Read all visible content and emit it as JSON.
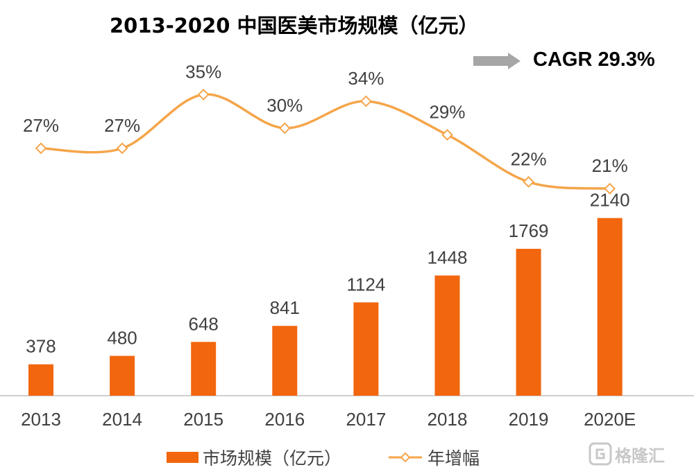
{
  "title": "2013-2020 中国医美市场规模（亿元）",
  "cagr_label": "CAGR 29.3%",
  "watermark": "格隆汇",
  "colors": {
    "bar": "#f2660e",
    "line": "#f5a54a",
    "axis": "#bfbfbf",
    "text": "#404040",
    "arrow": "#a6a6a6"
  },
  "chart_data": {
    "type": "bar",
    "categories": [
      "2013",
      "2014",
      "2015",
      "2016",
      "2017",
      "2018",
      "2019",
      "2020E"
    ],
    "series": [
      {
        "name": "市场规模（亿元）",
        "type": "bar",
        "values": [
          378,
          480,
          648,
          841,
          1124,
          1448,
          1769,
          2140
        ]
      },
      {
        "name": "年增幅",
        "type": "line",
        "values": [
          27,
          27,
          35,
          30,
          34,
          29,
          22,
          21
        ],
        "labels": [
          "27%",
          "27%",
          "35%",
          "30%",
          "34%",
          "29%",
          "22%",
          "21%"
        ]
      }
    ],
    "legend_position": "bottom",
    "grid": false
  }
}
